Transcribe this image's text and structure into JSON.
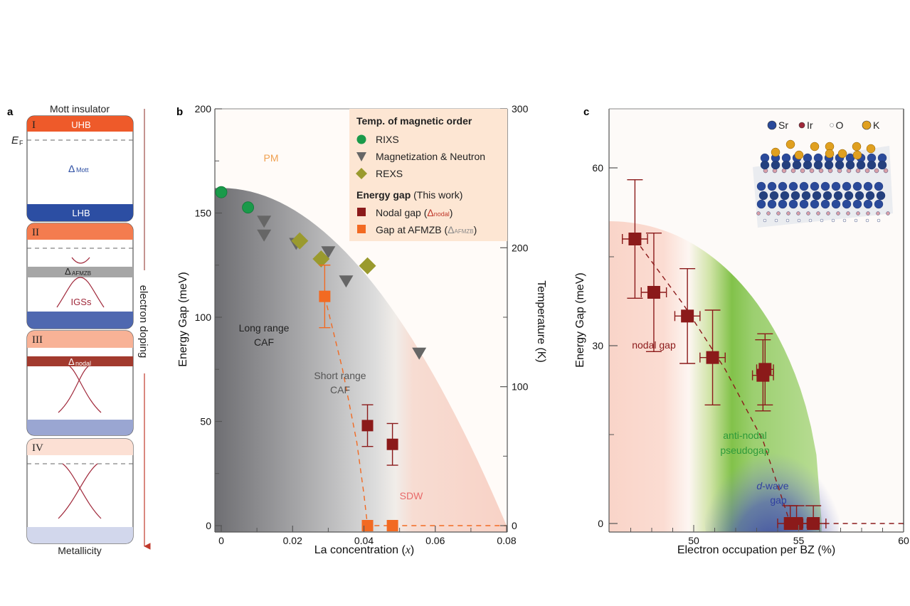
{
  "panel_a": {
    "label": "a",
    "top_label": "Mott insulator",
    "bottom_label": "Metallicity",
    "arrow_label": "electron doping",
    "ef_label": "E",
    "ef_sub": "F",
    "stages": [
      {
        "roman": "I",
        "top_band": "UHB",
        "bottom_band": "LHB",
        "gap_symbol": "Δ",
        "gap_sub": "Mott",
        "top_color": "#ee5a2a",
        "bottom_color": "#2c4ea3"
      },
      {
        "roman": "II",
        "gap_symbol": "Δ",
        "gap_sub": "AFMZB",
        "states_label": "IGSs",
        "top_color": "#f47c4f",
        "bottom_color": "#4f68b0",
        "gap_color": "#a6a6a6"
      },
      {
        "roman": "III",
        "gap_symbol": "Δ",
        "gap_sub": "nodal",
        "top_color": "#f8b296",
        "bottom_color": "#9aa6d2",
        "gap_color": "#a23a2e"
      },
      {
        "roman": "IV",
        "top_color": "#fce0d4",
        "bottom_color": "#d2d7ec"
      }
    ]
  },
  "chart_data": [
    {
      "panel": "b",
      "type": "scatter",
      "xlabel": "La concentration (x)",
      "ylabel": "Energy Gap (meV)",
      "y2label": "Temperature (K)",
      "xlim": [
        -0.002,
        0.08
      ],
      "ylim": [
        0,
        200
      ],
      "y2lim": [
        0,
        300
      ],
      "xticks": [
        "0",
        "0.02",
        "0.04",
        "0.06",
        "0.08"
      ],
      "xtick_values": [
        0,
        0.02,
        0.04,
        0.06,
        0.08
      ],
      "yticks": [
        "0",
        "50",
        "100",
        "150",
        "200"
      ],
      "ytick_values": [
        0,
        50,
        100,
        150,
        200
      ],
      "y2ticks": [
        "0",
        "100",
        "200",
        "300"
      ],
      "y2tick_values": [
        0,
        100,
        200,
        300
      ],
      "regions": [
        {
          "label": "PM",
          "color": "#f0a050"
        },
        {
          "label": "Long range\nCAF",
          "color": "#333333"
        },
        {
          "label": "Short range\nCAF",
          "color": "#555555"
        },
        {
          "label": "SDW",
          "color": "#e86a6a"
        }
      ],
      "legend": {
        "position": "top-right",
        "group1_title": "Temp. of magnetic order",
        "group2_title_bold": "Energy gap",
        "group2_title_rest": " (This work)",
        "entries": [
          {
            "name": "RIXS",
            "marker": "circle",
            "color": "#1a9a4a"
          },
          {
            "name": "Magnetization & Neutron",
            "marker": "triangle-down",
            "color": "#666666"
          },
          {
            "name": "REXS",
            "marker": "diamond",
            "color": "#9a9a2e"
          },
          {
            "name": "Nodal gap (",
            "sym": "Δ",
            "sub": "nodal",
            "marker": "square",
            "color": "#8b1a1a"
          },
          {
            "name": "Gap at AFMZB (",
            "sym": "Δ",
            "sub": "AFMZB",
            "marker": "square",
            "color": "#f26a22"
          }
        ]
      },
      "series": [
        {
          "name": "RIXS",
          "axis": "temperature",
          "color": "#1a9a4a",
          "marker": "circle",
          "points": [
            {
              "x": 0.0,
              "y": 240
            },
            {
              "x": 0.0075,
              "y": 229
            }
          ]
        },
        {
          "name": "Magnetization & Neutron",
          "axis": "temperature",
          "color": "#666666",
          "marker": "triangle-down",
          "points": [
            {
              "x": 0.012,
              "y": 219
            },
            {
              "x": 0.012,
              "y": 209
            },
            {
              "x": 0.021,
              "y": 203
            },
            {
              "x": 0.03,
              "y": 197
            },
            {
              "x": 0.035,
              "y": 176
            },
            {
              "x": 0.0555,
              "y": 124
            }
          ]
        },
        {
          "name": "REXS",
          "axis": "temperature",
          "color": "#9a9a2e",
          "marker": "diamond",
          "points": [
            {
              "x": 0.022,
              "y": 205
            },
            {
              "x": 0.028,
              "y": 192
            },
            {
              "x": 0.041,
              "y": 187
            }
          ]
        },
        {
          "name": "Nodal gap",
          "axis": "energy",
          "color": "#8b1a1a",
          "marker": "square",
          "points": [
            {
              "x": 0.041,
              "y": 48,
              "yerr_low": 38,
              "yerr_high": 58
            },
            {
              "x": 0.048,
              "y": 39,
              "yerr_low": 29,
              "yerr_high": 49
            }
          ]
        },
        {
          "name": "Gap at AFMZB",
          "axis": "energy",
          "color": "#f26a22",
          "marker": "square",
          "points": [
            {
              "x": 0.029,
              "y": 110,
              "yerr_low": 95,
              "yerr_high": 125
            },
            {
              "x": 0.041,
              "y": 0
            },
            {
              "x": 0.048,
              "y": 0
            }
          ]
        }
      ],
      "dome_boundary_temperature": {
        "x": [
          0,
          0.02,
          0.04,
          0.06,
          0.08
        ],
        "y": [
          243,
          225,
          183,
          110,
          0
        ]
      },
      "afmzb_trend_dashed": {
        "x": [
          0.029,
          0.034,
          0.038,
          0.04,
          0.041,
          0.08
        ],
        "y": [
          110,
          75,
          40,
          15,
          0,
          0
        ]
      }
    },
    {
      "panel": "c",
      "type": "scatter",
      "xlabel": "Electron occupation per BZ (%)",
      "ylabel": "Energy Gap (meV)",
      "xlim": [
        45.9,
        60
      ],
      "ylim": [
        0,
        70
      ],
      "xticks": [
        "50",
        "55",
        "60"
      ],
      "xtick_values": [
        50,
        55,
        60
      ],
      "yticks": [
        "0",
        "30",
        "60"
      ],
      "ytick_values": [
        0,
        30,
        60
      ],
      "regions": [
        {
          "label": "nodal gap",
          "color": "#8b1a1a"
        },
        {
          "label": "anti-nodal\npseudogap",
          "color": "#2e9a3a"
        },
        {
          "label_italic": "d",
          "label": "-wave\ngap",
          "color": "#3040a0"
        }
      ],
      "inset_legend": [
        {
          "name": "Sr",
          "color": "#2a4a9a"
        },
        {
          "name": "Ir",
          "color": "#a0283a"
        },
        {
          "name": "O",
          "color": "#ffffff"
        },
        {
          "name": "K",
          "color": "#e0a020"
        }
      ],
      "series": [
        {
          "name": "Nodal gap",
          "color": "#8b1a1a",
          "marker": "square",
          "points": [
            {
              "x": 47.2,
              "y": 48,
              "xerr": 0.6,
              "yerr_low": 38,
              "yerr_high": 58
            },
            {
              "x": 48.1,
              "y": 39,
              "xerr": 0.6,
              "yerr_low": 29,
              "yerr_high": 49
            },
            {
              "x": 49.7,
              "y": 35,
              "xerr": 0.6,
              "yerr_low": 27,
              "yerr_high": 43
            },
            {
              "x": 50.9,
              "y": 28,
              "xerr": 0.6,
              "yerr_low": 20,
              "yerr_high": 36
            },
            {
              "x": 53.3,
              "y": 25,
              "xerr": 0.5,
              "yerr_low": 19,
              "yerr_high": 31
            },
            {
              "x": 53.4,
              "y": 26,
              "xerr": 0.4,
              "yerr_low": 20,
              "yerr_high": 32
            },
            {
              "x": 54.6,
              "y": 0,
              "xerr": 0.6,
              "yerr_low": 0,
              "yerr_high": 3
            },
            {
              "x": 54.9,
              "y": 0,
              "xerr": 0.5,
              "yerr_low": 0,
              "yerr_high": 3
            },
            {
              "x": 55.7,
              "y": 0,
              "xerr": 0.6,
              "yerr_low": 0,
              "yerr_high": 3
            }
          ]
        },
        {
          "name": "Trend (dashed)",
          "color": "#8b1a1a",
          "marker": "none",
          "points": [
            {
              "x": 47.2,
              "y": 48
            },
            {
              "x": 49.5,
              "y": 37
            },
            {
              "x": 51.5,
              "y": 26
            },
            {
              "x": 53.3,
              "y": 14
            },
            {
              "x": 54.6,
              "y": 0
            },
            {
              "x": 60,
              "y": 0
            }
          ]
        }
      ],
      "dome_boundary": {
        "x": [
          46,
          48,
          50,
          52,
          53.5,
          55,
          56
        ],
        "y": [
          51,
          47,
          40,
          30,
          20,
          8,
          0
        ]
      }
    }
  ],
  "panel_b_label": "b",
  "panel_c_label": "c"
}
